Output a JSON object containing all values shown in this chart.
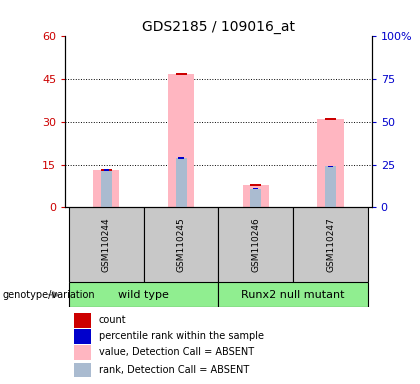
{
  "title": "GDS2185 / 109016_at",
  "samples": [
    "GSM110244",
    "GSM110245",
    "GSM110246",
    "GSM110247"
  ],
  "pink_bar_values": [
    13.0,
    47.0,
    8.0,
    31.0
  ],
  "blue_bar_values": [
    22.0,
    29.0,
    11.0,
    24.0
  ],
  "ylim_left": [
    0,
    60
  ],
  "ylim_right": [
    0,
    100
  ],
  "yticks_left": [
    0,
    15,
    30,
    45,
    60
  ],
  "yticks_right": [
    0,
    25,
    50,
    75,
    100
  ],
  "ytick_labels_left": [
    "0",
    "15",
    "30",
    "45",
    "60"
  ],
  "ytick_labels_right": [
    "0",
    "25",
    "50",
    "75",
    "100%"
  ],
  "pink_color": "#FFB6C1",
  "blue_color": "#AABBD0",
  "red_color": "#CC0000",
  "dark_blue_color": "#0000CC",
  "bg_color": "#ffffff",
  "left_axis_color": "#CC0000",
  "right_axis_color": "#0000CC",
  "bar_width": 0.35,
  "title_fontsize": 10,
  "tick_fontsize": 8,
  "gray_box_color": "#C8C8C8",
  "green_box_color": "#90EE90",
  "genotype_label": "genotype/variation",
  "wt_label": "wild type",
  "nm_label": "Runx2 null mutant",
  "legend_labels": [
    "count",
    "percentile rank within the sample",
    "value, Detection Call = ABSENT",
    "rank, Detection Call = ABSENT"
  ],
  "legend_colors": [
    "#CC0000",
    "#0000CC",
    "#FFB6C1",
    "#AABBD0"
  ]
}
